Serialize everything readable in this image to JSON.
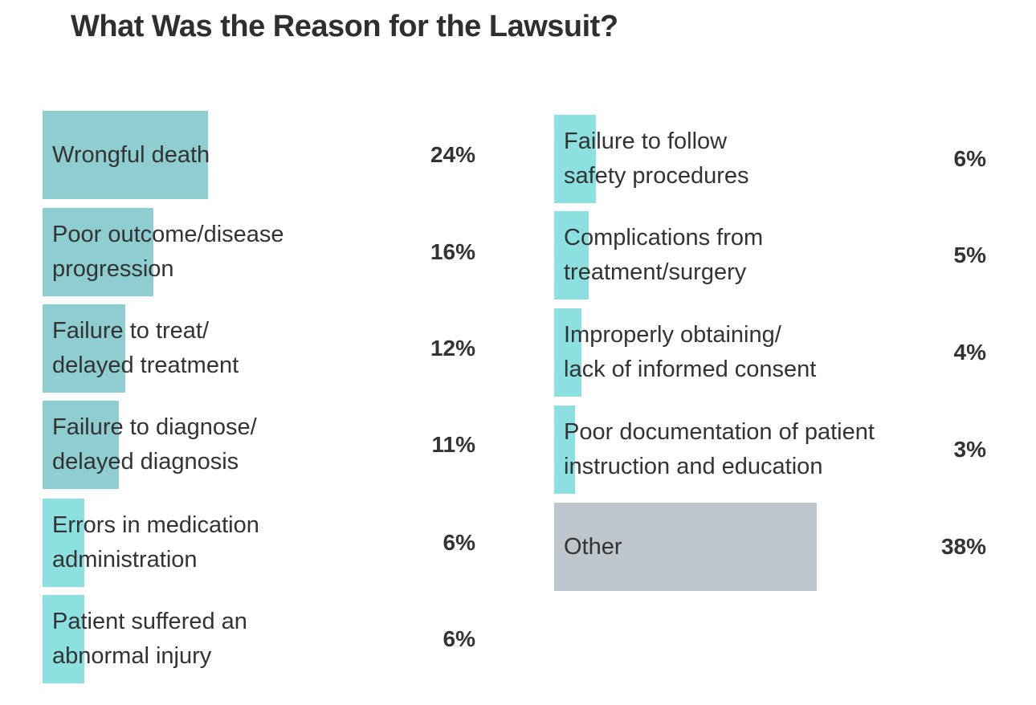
{
  "chart_data": {
    "type": "bar",
    "orientation": "horizontal",
    "title": "What Was the Reason for the Lawsuit?",
    "unit": "%",
    "xlim": [
      0,
      38
    ],
    "grid": false,
    "columns": [
      [
        {
          "label": [
            "Wrongful death"
          ],
          "value": 24,
          "text": "24%",
          "color": "#8ecdd0"
        },
        {
          "label": [
            "Poor outcome/disease",
            "progression"
          ],
          "value": 16,
          "text": "16%",
          "color": "#8ecdd0"
        },
        {
          "label": [
            "Failure to treat/",
            "delayed treatment"
          ],
          "value": 12,
          "text": "12%",
          "color": "#8ecdd0"
        },
        {
          "label": [
            "Failure to diagnose/",
            "delayed diagnosis"
          ],
          "value": 11,
          "text": "11%",
          "color": "#8ecdd0"
        },
        {
          "label": [
            "Errors in medication",
            "administration"
          ],
          "value": 6,
          "text": "6%",
          "color": "#8ce0e0"
        },
        {
          "label": [
            "Patient suffered an",
            "abnormal injury"
          ],
          "value": 6,
          "text": "6%",
          "color": "#8ce0e0"
        }
      ],
      [
        {
          "label": [
            "Failure to follow",
            "safety procedures"
          ],
          "value": 6,
          "text": "6%",
          "color": "#8ce0e0"
        },
        {
          "label": [
            "Complications from",
            "treatment/surgery"
          ],
          "value": 5,
          "text": "5%",
          "color": "#8ce0e0"
        },
        {
          "label": [
            "Improperly obtaining/",
            "lack of informed consent"
          ],
          "value": 4,
          "text": "4%",
          "color": "#8ce0e0"
        },
        {
          "label": [
            "Poor documentation of patient",
            "instruction and education"
          ],
          "value": 3,
          "text": "3%",
          "color": "#8ce0e0"
        },
        {
          "label": [
            "Other"
          ],
          "value": 38,
          "text": "38%",
          "color": "#bcc6cc"
        }
      ]
    ]
  }
}
